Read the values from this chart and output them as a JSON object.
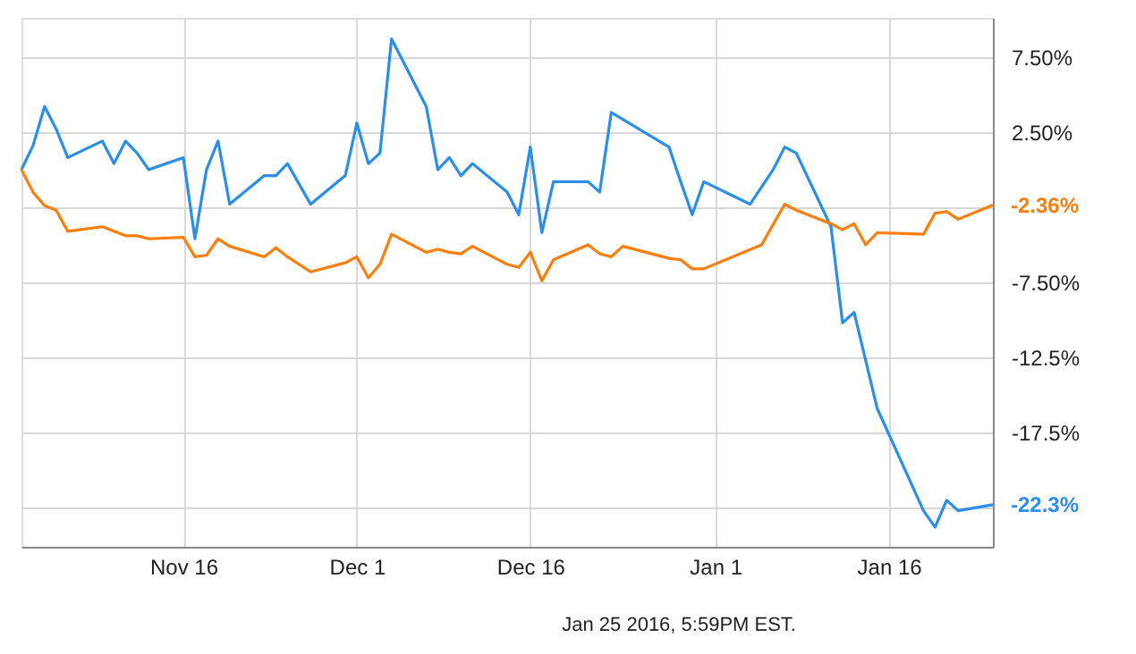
{
  "chart_data": {
    "type": "line",
    "series": [
      {
        "color": "#2b8fe8",
        "x": [
          "2015-11-02",
          "2015-11-03",
          "2015-11-04",
          "2015-11-05",
          "2015-11-06",
          "2015-11-09",
          "2015-11-10",
          "2015-11-11",
          "2015-11-12",
          "2015-11-13",
          "2015-11-16",
          "2015-11-17",
          "2015-11-18",
          "2015-11-19",
          "2015-11-20",
          "2015-11-23",
          "2015-11-24",
          "2015-11-25",
          "2015-11-27",
          "2015-11-30",
          "2015-12-01",
          "2015-12-02",
          "2015-12-03",
          "2015-12-04",
          "2015-12-07",
          "2015-12-08",
          "2015-12-09",
          "2015-12-10",
          "2015-12-11",
          "2015-12-14",
          "2015-12-15",
          "2015-12-16",
          "2015-12-17",
          "2015-12-18",
          "2015-12-21",
          "2015-12-22",
          "2015-12-23",
          "2015-12-28",
          "2015-12-29",
          "2015-12-30",
          "2015-12-31",
          "2016-01-04",
          "2016-01-06",
          "2016-01-07",
          "2016-01-08",
          "2016-01-11",
          "2016-01-12",
          "2016-01-13",
          "2016-01-15",
          "2016-01-19",
          "2016-01-20",
          "2016-01-21",
          "2016-01-22",
          "2016-01-25"
        ],
        "values": [
          0.0,
          1.6,
          4.2,
          2.7,
          0.8,
          1.9,
          0.4,
          1.9,
          1.1,
          0.0,
          0.8,
          -4.6,
          0.0,
          1.9,
          -2.3,
          -0.4,
          -0.4,
          0.4,
          -2.3,
          -0.4,
          3.1,
          0.4,
          1.1,
          8.7,
          4.2,
          0.0,
          0.8,
          -0.4,
          0.4,
          -1.5,
          -3.0,
          1.5,
          -4.2,
          -0.8,
          -0.8,
          -1.5,
          3.8,
          1.5,
          -0.8,
          -3.0,
          -0.8,
          -2.3,
          0.0,
          1.5,
          1.1,
          -3.8,
          -10.2,
          -9.5,
          -15.9,
          -22.7,
          -23.8,
          -22.0,
          -22.7,
          -22.3
        ]
      },
      {
        "color": "#ff7f0e",
        "x": [
          "2015-11-02",
          "2015-11-03",
          "2015-11-04",
          "2015-11-05",
          "2015-11-06",
          "2015-11-09",
          "2015-11-10",
          "2015-11-11",
          "2015-11-12",
          "2015-11-13",
          "2015-11-16",
          "2015-11-17",
          "2015-11-18",
          "2015-11-19",
          "2015-11-20",
          "2015-11-23",
          "2015-11-24",
          "2015-11-25",
          "2015-11-27",
          "2015-11-30",
          "2015-12-01",
          "2015-12-02",
          "2015-12-03",
          "2015-12-04",
          "2015-12-07",
          "2015-12-08",
          "2015-12-09",
          "2015-12-10",
          "2015-12-11",
          "2015-12-14",
          "2015-12-15",
          "2015-12-16",
          "2015-12-17",
          "2015-12-18",
          "2015-12-21",
          "2015-12-22",
          "2015-12-23",
          "2015-12-24",
          "2015-12-28",
          "2015-12-29",
          "2015-12-30",
          "2015-12-31",
          "2016-01-05",
          "2016-01-07",
          "2016-01-08",
          "2016-01-11",
          "2016-01-12",
          "2016-01-13",
          "2016-01-14",
          "2016-01-15",
          "2016-01-19",
          "2016-01-20",
          "2016-01-21",
          "2016-01-22",
          "2016-01-25"
        ],
        "values": [
          0.0,
          -1.5,
          -2.4,
          -2.7,
          -4.1,
          -3.8,
          -4.1,
          -4.4,
          -4.4,
          -4.6,
          -4.5,
          -5.8,
          -5.7,
          -4.6,
          -5.1,
          -5.8,
          -5.2,
          -5.8,
          -6.8,
          -6.2,
          -5.8,
          -7.2,
          -6.3,
          -4.3,
          -5.5,
          -5.3,
          -5.5,
          -5.6,
          -5.1,
          -6.3,
          -6.5,
          -5.5,
          -7.4,
          -6.0,
          -5.0,
          -5.6,
          -5.8,
          -5.1,
          -5.9,
          -6.0,
          -6.6,
          -6.6,
          -5.0,
          -2.3,
          -2.7,
          -3.6,
          -4.0,
          -3.6,
          -5.0,
          -4.2,
          -4.3,
          -2.9,
          -2.8,
          -3.3,
          -2.36
        ]
      }
    ],
    "xlim": [
      "2015-11-02",
      "2016-01-25"
    ],
    "xticks": [
      {
        "value": "2015-11-16",
        "label": "Nov 16"
      },
      {
        "value": "2015-12-01",
        "label": "Dec 1"
      },
      {
        "value": "2015-12-16",
        "label": "Dec 16"
      },
      {
        "value": "2016-01-01",
        "label": "Jan 1"
      },
      {
        "value": "2016-01-16",
        "label": "Jan 16"
      }
    ],
    "ylim": [
      -25.1,
      10.1
    ],
    "yticks": [
      {
        "value": 7.5,
        "label": "7.50%"
      },
      {
        "value": 2.5,
        "label": "2.50%"
      },
      {
        "value": -2.5,
        "label": null
      },
      {
        "value": -7.5,
        "label": "-7.50%"
      },
      {
        "value": -12.5,
        "label": "-12.5%"
      },
      {
        "value": -17.5,
        "label": "-17.5%"
      },
      {
        "value": -22.5,
        "label": null
      }
    ],
    "grid": true,
    "marker": "none",
    "line_style": "solid",
    "annotations": [
      {
        "text": "-22.3%",
        "x": "2016-01-25",
        "y": -22.3
      },
      {
        "text": "-2.36%",
        "x": "2016-01-25",
        "y": -2.36
      },
      "Jan 25 2016, 5:59PM EST."
    ]
  }
}
